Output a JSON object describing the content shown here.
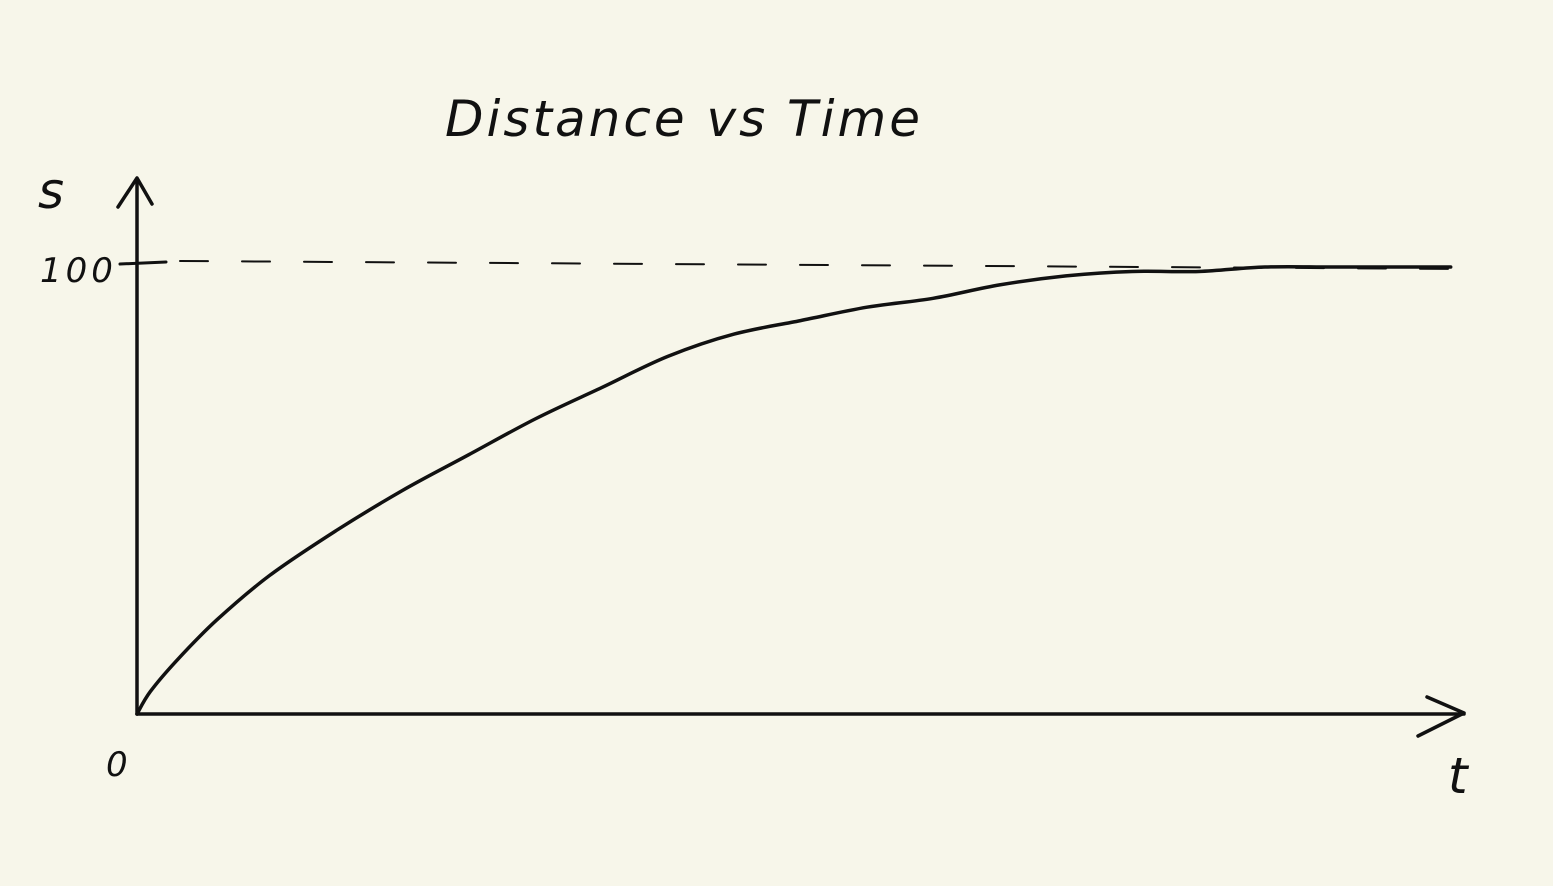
{
  "chart_data": {
    "type": "line",
    "title": "Distance vs Time",
    "xlabel": "t",
    "ylabel": "s",
    "origin_label": "0",
    "ytick_labels": [
      "100"
    ],
    "xlim": [
      0,
      1.0
    ],
    "ylim": [
      0,
      100
    ],
    "grid": false,
    "asymptote": {
      "y": 100,
      "style": "dashed"
    },
    "series": [
      {
        "x": [
          0,
          0.01,
          0.03,
          0.06,
          0.1,
          0.15,
          0.2,
          0.25,
          0.3,
          0.35,
          0.4,
          0.45,
          0.5,
          0.55,
          0.6,
          0.65,
          0.7,
          0.75,
          0.8,
          0.85,
          0.9,
          0.95,
          0.99
        ],
        "values": [
          0,
          5,
          12,
          21,
          31,
          41,
          50,
          58,
          66,
          73,
          80,
          85,
          88,
          91,
          93,
          96,
          98,
          99,
          99,
          100,
          100,
          100,
          100
        ],
        "color": "#111111"
      }
    ]
  },
  "colors": {
    "background": "#f7f6ea",
    "ink": "#111111"
  }
}
